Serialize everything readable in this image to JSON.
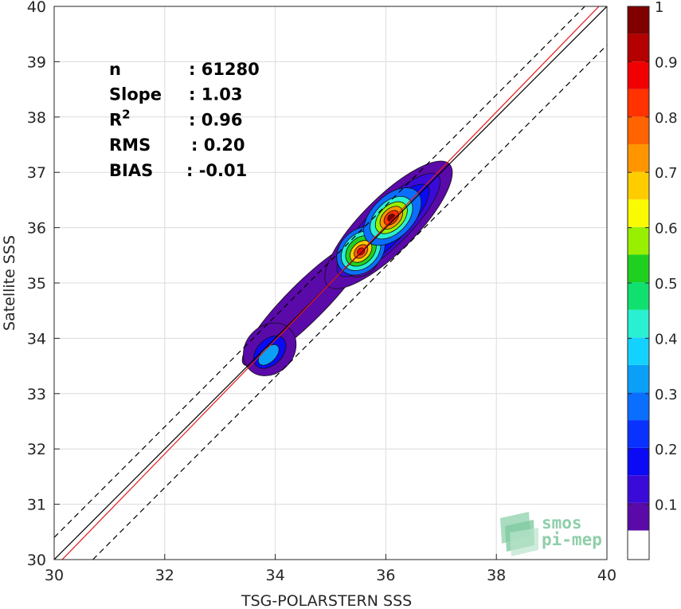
{
  "chart_data": {
    "type": "heatmap",
    "subtype": "density-contour scatter",
    "xlabel": "TSG-POLARSTERN SSS",
    "ylabel": "Satellite SSS",
    "xlim": [
      30,
      40
    ],
    "ylim": [
      30,
      40
    ],
    "xticks": [
      30,
      32,
      34,
      36,
      38,
      40
    ],
    "yticks": [
      30,
      31,
      32,
      33,
      34,
      35,
      36,
      37,
      38,
      39,
      40
    ],
    "grid": true,
    "stats": [
      {
        "label": "n",
        "value": ": 61280"
      },
      {
        "label": "Slope",
        "value": ": 1.03"
      },
      {
        "label": "R",
        "sup": "2",
        "value": ": 0.96"
      },
      {
        "label": "RMS",
        "value": ": 0.20"
      },
      {
        "label": "BIAS",
        "value": ": -0.01"
      }
    ],
    "lines": [
      {
        "kind": "one-to-one",
        "color": "#000000",
        "style": "solid",
        "x": [
          30,
          40
        ],
        "y": [
          30,
          40
        ]
      },
      {
        "kind": "regression",
        "color": "#e41a1c",
        "style": "solid",
        "x": [
          30,
          40
        ],
        "y": [
          29.85,
          40.15
        ]
      },
      {
        "kind": "upper-bound",
        "color": "#000000",
        "style": "dashed",
        "x": [
          30,
          40
        ],
        "y": [
          30.4,
          40.4
        ]
      },
      {
        "kind": "lower-bound",
        "color": "#000000",
        "style": "dashed",
        "x": [
          30.7,
          40
        ],
        "y": [
          30,
          39.3
        ]
      }
    ],
    "density_peaks": [
      {
        "x": 36.1,
        "y": 36.18,
        "level": 0.98
      },
      {
        "x": 35.55,
        "y": 35.57,
        "level": 0.88
      },
      {
        "x": 33.9,
        "y": 33.65,
        "level": 0.33
      },
      {
        "x": 34.6,
        "y": 34.7,
        "level": 0.12
      }
    ],
    "colorbar": {
      "ticks": [
        0.1,
        0.2,
        0.3,
        0.4,
        0.5,
        0.6,
        0.7,
        0.8,
        0.9,
        1
      ],
      "tick_labels": [
        "0.1",
        "0.2",
        "0.3",
        "0.4",
        "0.5",
        "0.6",
        "0.7",
        "0.8",
        "0.9",
        "1"
      ],
      "range": [
        0,
        1
      ],
      "empty_band_color": "#ffffff",
      "colors": [
        "#5a0aa8",
        "#3a0ad8",
        "#0a0af5",
        "#0a32ff",
        "#0a6eff",
        "#0aa0f8",
        "#14d2ff",
        "#28f0d0",
        "#10e070",
        "#20d020",
        "#98f000",
        "#fafa00",
        "#ffcc00",
        "#ff9600",
        "#ff6400",
        "#ff3200",
        "#f00000",
        "#b40000",
        "#800000"
      ]
    }
  },
  "watermark": {
    "line1": "smos",
    "line2": "pi-mep"
  }
}
